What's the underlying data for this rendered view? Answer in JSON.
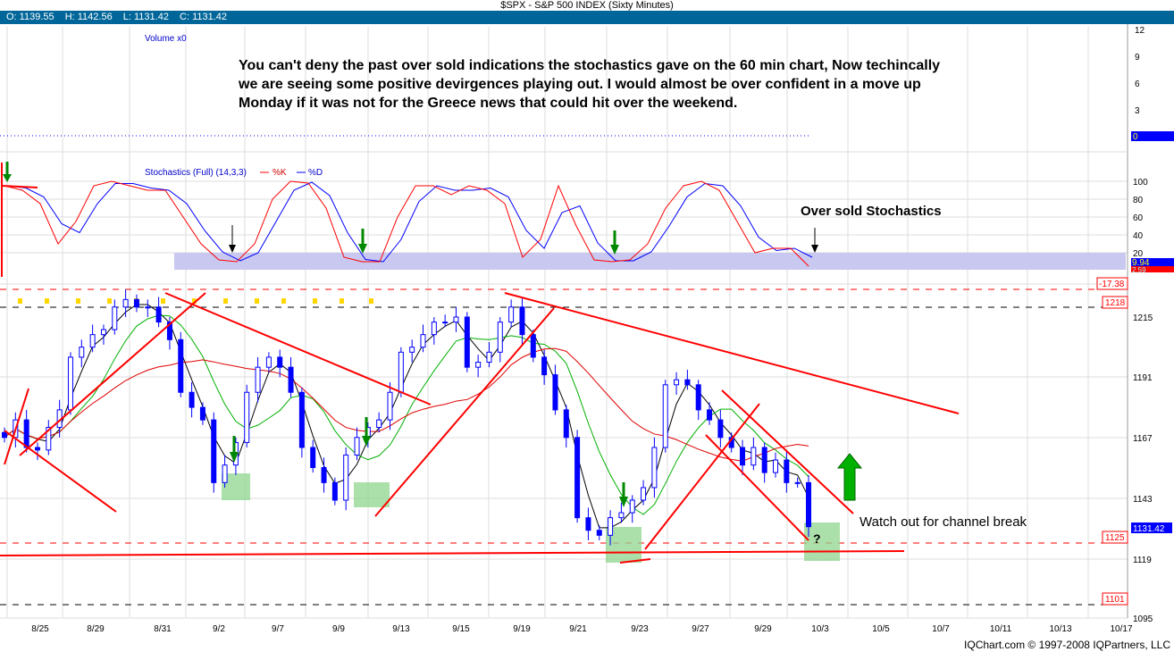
{
  "window": {
    "title": "$SPX - S&P 500 INDEX (Sixty Minutes)"
  },
  "ohlc": {
    "open": "O: 1139.55",
    "high": "H: 1142.56",
    "low": "L: 1131.42",
    "close": "C: 1131.42"
  },
  "volume_panel": {
    "label": "Volume x0",
    "ticks": [
      "12",
      "9",
      "6",
      "3"
    ],
    "current": "0"
  },
  "stoch_panel": {
    "label": "Stochastics (Full) (14,3,3)",
    "k_label": "%K",
    "d_label": "%D",
    "ticks": [
      "100",
      "80",
      "60",
      "40",
      "20"
    ],
    "k_value": "9.94",
    "d_value": "2.59",
    "diff_label": "-17.38",
    "colors": {
      "k": "#ff0000",
      "d": "#0000ff",
      "band": "#c8c8f0"
    }
  },
  "price_panel": {
    "ticks": [
      "1215",
      "1191",
      "1167",
      "1143",
      "1119",
      "1095"
    ],
    "levels": [
      "1218",
      "1125",
      "1101"
    ],
    "last_price": "1131.42"
  },
  "annotations": {
    "main_note": "You can't deny the past over sold indications the stochastics gave on the 60 min chart, Now techincally we are seeing some positive devirgences playing out. I would almost be over confident in a move up Monday if it was not for the Greece news that could hit over the weekend.",
    "oversold": "Over sold Stochastics",
    "channel": "Watch out for channel break",
    "question": "?"
  },
  "footer": "IQChart.com © 1997-2008 IQPartners, LLC",
  "chart_data": {
    "type": "candlestick",
    "title": "$SPX - S&P 500 INDEX (Sixty Minutes)",
    "x_tick_labels": [
      "8/25",
      "8/29",
      "8/31",
      "9/2",
      "9/7",
      "9/9",
      "9/13",
      "9/15",
      "9/19",
      "9/21",
      "9/23",
      "9/27",
      "9/29",
      "10/3",
      "10/5",
      "10/7",
      "10/11",
      "10/13",
      "10/17"
    ],
    "ylim": [
      1095,
      1225
    ],
    "closes": [
      1167,
      1174,
      1163,
      1162,
      1171,
      1178,
      1199,
      1203,
      1208,
      1210,
      1219,
      1222,
      1219,
      1219,
      1213,
      1206,
      1185,
      1179,
      1174,
      1149,
      1156,
      1165,
      1185,
      1195,
      1199,
      1195,
      1185,
      1163,
      1155,
      1149,
      1142,
      1160,
      1167,
      1171,
      1174,
      1185,
      1201,
      1203,
      1208,
      1213,
      1213,
      1215,
      1195,
      1197,
      1201,
      1213,
      1219,
      1208,
      1199,
      1192,
      1178,
      1167,
      1135,
      1130,
      1128,
      1135,
      1137,
      1142,
      1147,
      1163,
      1188,
      1190,
      1188,
      1178,
      1174,
      1167,
      1163,
      1156,
      1163,
      1153,
      1158,
      1149,
      1149,
      1131.42
    ],
    "stoch_k": [
      95,
      90,
      75,
      30,
      55,
      95,
      100,
      95,
      90,
      90,
      60,
      30,
      12,
      10,
      30,
      80,
      100,
      98,
      70,
      15,
      10,
      10,
      60,
      95,
      95,
      85,
      95,
      90,
      75,
      15,
      35,
      95,
      50,
      12,
      10,
      12,
      30,
      70,
      95,
      100,
      90,
      55,
      20,
      25,
      25,
      5
    ],
    "stoch_ylim": [
      0,
      100
    ],
    "levels": [
      1218,
      1125,
      1101
    ],
    "last": 1131.42
  }
}
